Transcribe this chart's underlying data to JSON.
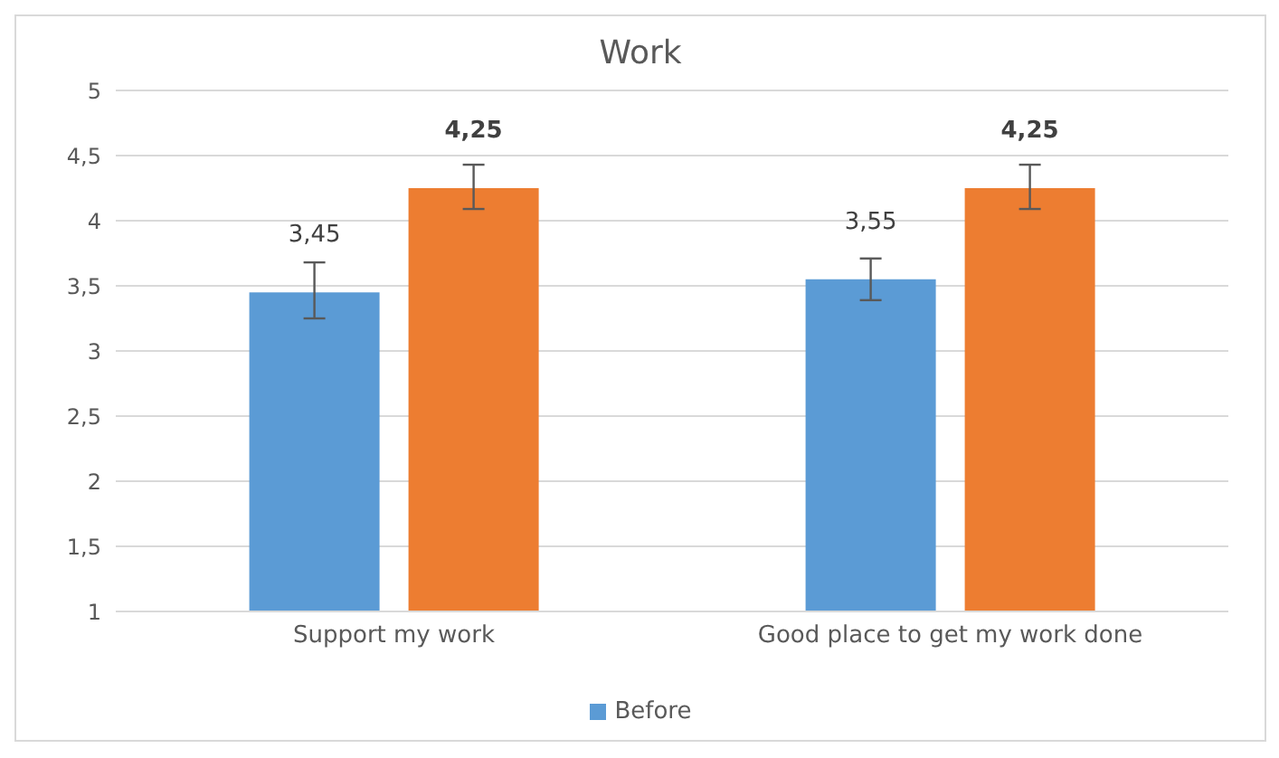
{
  "chart_data": {
    "type": "bar",
    "title": "Work",
    "categories": [
      "Support my work",
      "Good place to get my work done"
    ],
    "series": [
      {
        "name": "Before",
        "color": "#5b9bd5",
        "values": [
          3.45,
          3.55
        ],
        "errors": [
          [
            3.25,
            3.68
          ],
          [
            3.39,
            3.71
          ]
        ],
        "value_labels": [
          "3,45",
          "3,55"
        ]
      },
      {
        "color": "#ed7d31",
        "values": [
          4.25,
          4.25
        ],
        "errors": [
          [
            4.09,
            4.43
          ],
          [
            4.09,
            4.43
          ]
        ],
        "value_labels": [
          "4,25",
          "4,25"
        ]
      }
    ],
    "ylim": [
      1,
      5
    ],
    "yticks": [
      1,
      {
        "value": 1.5,
        "label": "1,5"
      },
      2,
      {
        "value": 2.5,
        "label": "2,5"
      },
      3,
      {
        "value": 3.5,
        "label": "3,5"
      },
      4,
      {
        "value": 4.5,
        "label": "4,5"
      },
      5
    ],
    "grid": "y",
    "legend": "bottom"
  }
}
